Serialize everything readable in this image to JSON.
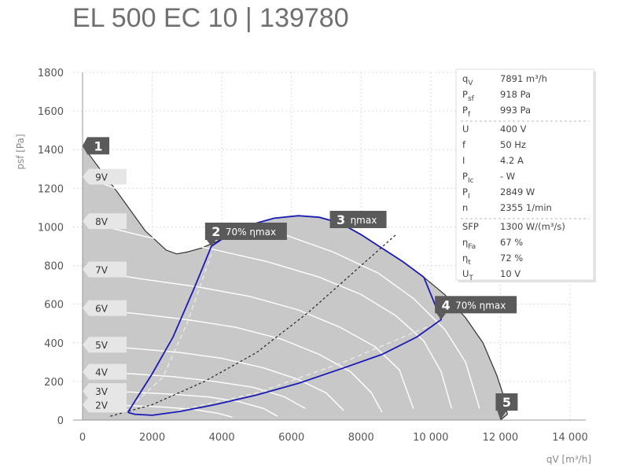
{
  "title": "EL 500 EC 10 | 139780",
  "chart_data": {
    "type": "line",
    "xlabel": "qV [m³/h]",
    "ylabel": "psf [Pa]",
    "xlim": [
      0,
      14000
    ],
    "ylim": [
      0,
      1800
    ],
    "x_ticks": [
      {
        "value": 0,
        "label": "0"
      },
      {
        "value": 2000,
        "label": "2000"
      },
      {
        "value": 4000,
        "label": "4000"
      },
      {
        "value": 6000,
        "label": "6000"
      },
      {
        "value": 8000,
        "label": "8000"
      },
      {
        "value": 10000,
        "label": "10 000"
      },
      {
        "value": 12000,
        "label": "12 000"
      },
      {
        "value": 14000,
        "label": "14 000"
      }
    ],
    "y_ticks": [
      {
        "value": 0,
        "label": "0"
      },
      {
        "value": 200,
        "label": "200"
      },
      {
        "value": 400,
        "label": "400"
      },
      {
        "value": 600,
        "label": "600"
      },
      {
        "value": 800,
        "label": "800"
      },
      {
        "value": 1000,
        "label": "1000"
      },
      {
        "value": 1200,
        "label": "1200"
      },
      {
        "value": 1400,
        "label": "1400"
      },
      {
        "value": 1600,
        "label": "1600"
      },
      {
        "value": 1800,
        "label": "1800"
      }
    ],
    "grid": true,
    "envelope": [
      [
        0,
        1420
      ],
      [
        500,
        1300
      ],
      [
        1000,
        1180
      ],
      [
        1400,
        1080
      ],
      [
        1800,
        980
      ],
      [
        2100,
        930
      ],
      [
        2400,
        880
      ],
      [
        2700,
        860
      ],
      [
        3000,
        870
      ],
      [
        3400,
        890
      ],
      [
        3800,
        920
      ],
      [
        4200,
        960
      ],
      [
        4800,
        1010
      ],
      [
        5500,
        1045
      ],
      [
        6200,
        1058
      ],
      [
        6800,
        1050
      ],
      [
        7400,
        1020
      ],
      [
        8000,
        960
      ],
      [
        8600,
        890
      ],
      [
        9200,
        820
      ],
      [
        9800,
        740
      ],
      [
        10400,
        650
      ],
      [
        11000,
        530
      ],
      [
        11500,
        400
      ],
      [
        11900,
        230
      ],
      [
        12100,
        120
      ],
      [
        12200,
        30
      ],
      [
        12000,
        0
      ],
      [
        0,
        0
      ]
    ],
    "speed_curves": [
      {
        "label": "9V",
        "values": [
          [
            0,
            1260
          ],
          [
            2200,
            1120
          ],
          [
            4200,
            1040
          ],
          [
            5800,
            960
          ],
          [
            7200,
            870
          ],
          [
            8500,
            760
          ],
          [
            9500,
            630
          ],
          [
            10400,
            470
          ],
          [
            11000,
            300
          ],
          [
            11400,
            60
          ]
        ]
      },
      {
        "label": "8V",
        "values": [
          [
            0,
            1030
          ],
          [
            1800,
            950
          ],
          [
            3600,
            890
          ],
          [
            5300,
            820
          ],
          [
            6800,
            740
          ],
          [
            8000,
            650
          ],
          [
            9000,
            540
          ],
          [
            9800,
            410
          ],
          [
            10300,
            250
          ],
          [
            10600,
            60
          ]
        ]
      },
      {
        "label": "7V",
        "values": [
          [
            0,
            780
          ],
          [
            1700,
            730
          ],
          [
            3300,
            690
          ],
          [
            4800,
            640
          ],
          [
            6200,
            570
          ],
          [
            7400,
            480
          ],
          [
            8400,
            380
          ],
          [
            9100,
            260
          ],
          [
            9500,
            60
          ]
        ]
      },
      {
        "label": "6V",
        "values": [
          [
            0,
            580
          ],
          [
            1600,
            550
          ],
          [
            3000,
            520
          ],
          [
            4400,
            480
          ],
          [
            5700,
            420
          ],
          [
            6800,
            340
          ],
          [
            7700,
            250
          ],
          [
            8300,
            140
          ],
          [
            8600,
            40
          ]
        ]
      },
      {
        "label": "5V",
        "values": [
          [
            0,
            390
          ],
          [
            1500,
            370
          ],
          [
            2800,
            350
          ],
          [
            4000,
            320
          ],
          [
            5200,
            270
          ],
          [
            6200,
            210
          ],
          [
            7000,
            140
          ],
          [
            7500,
            50
          ]
        ]
      },
      {
        "label": "4V",
        "values": [
          [
            0,
            250
          ],
          [
            1400,
            240
          ],
          [
            2600,
            225
          ],
          [
            3800,
            200
          ],
          [
            4900,
            170
          ],
          [
            5800,
            120
          ],
          [
            6400,
            60
          ]
        ]
      },
      {
        "label": "3V",
        "values": [
          [
            0,
            150
          ],
          [
            1400,
            145
          ],
          [
            2500,
            135
          ],
          [
            3600,
            120
          ],
          [
            4500,
            95
          ],
          [
            5200,
            60
          ],
          [
            5600,
            20
          ]
        ]
      },
      {
        "label": "2V",
        "values": [
          [
            0,
            80
          ],
          [
            1300,
            75
          ],
          [
            2300,
            68
          ],
          [
            3200,
            55
          ],
          [
            3900,
            35
          ],
          [
            4300,
            15
          ]
        ]
      }
    ],
    "efficiency_curves": [
      {
        "label": "ηmax",
        "values": [
          [
            800,
            20
          ],
          [
            2000,
            80
          ],
          [
            3500,
            200
          ],
          [
            5000,
            350
          ],
          [
            6500,
            560
          ],
          [
            8000,
            800
          ],
          [
            9000,
            960
          ]
        ]
      },
      {
        "label": "70% ηmax",
        "values": [
          [
            1200,
            40
          ],
          [
            2300,
            220
          ],
          [
            3000,
            500
          ],
          [
            3700,
            860
          ]
        ]
      },
      {
        "label": "70% ηmax",
        "values": [
          [
            2500,
            40
          ],
          [
            5000,
            140
          ],
          [
            7500,
            300
          ],
          [
            10000,
            490
          ]
        ]
      }
    ],
    "operating_boundary": {
      "color": "#1a1ab4",
      "values": [
        [
          1300,
          40
        ],
        [
          2000,
          240
        ],
        [
          2600,
          430
        ],
        [
          3200,
          680
        ],
        [
          3700,
          900
        ],
        [
          4200,
          960
        ],
        [
          4800,
          1010
        ],
        [
          5500,
          1045
        ],
        [
          6200,
          1058
        ],
        [
          6800,
          1050
        ],
        [
          7400,
          1020
        ],
        [
          8000,
          960
        ],
        [
          8600,
          890
        ],
        [
          9200,
          820
        ],
        [
          9800,
          740
        ],
        [
          10300,
          520
        ],
        [
          9600,
          430
        ],
        [
          8600,
          340
        ],
        [
          7500,
          270
        ],
        [
          6200,
          190
        ],
        [
          5000,
          130
        ],
        [
          3800,
          80
        ],
        [
          2800,
          45
        ],
        [
          2000,
          25
        ],
        [
          1500,
          30
        ],
        [
          1300,
          40
        ]
      ]
    },
    "markers": [
      {
        "id": "1",
        "label": "",
        "x": 0,
        "y": 1420
      },
      {
        "id": "2",
        "label": "70% ηmax",
        "x": 3700,
        "y": 900
      },
      {
        "id": "3",
        "label": "ηmax",
        "x": 7600,
        "y": 1010
      },
      {
        "id": "4",
        "label": "70% ηmax",
        "x": 10300,
        "y": 520
      },
      {
        "id": "5",
        "label": "",
        "x": 12000,
        "y": 0
      }
    ],
    "info_table": {
      "groups": [
        [
          {
            "sym": "q",
            "sub": "V",
            "value": "7891 m³/h"
          },
          {
            "sym": "P",
            "sub": "sf",
            "value": "918 Pa"
          },
          {
            "sym": "P",
            "sub": "f",
            "value": "993 Pa"
          }
        ],
        [
          {
            "sym": "U",
            "sub": "",
            "value": "400 V"
          },
          {
            "sym": "f",
            "sub": "",
            "value": "50 Hz"
          },
          {
            "sym": "I",
            "sub": "",
            "value": "4.2 A"
          },
          {
            "sym": "P",
            "sub": "Ic",
            "value": "- W"
          },
          {
            "sym": "P",
            "sub": "I",
            "value": "2849 W"
          },
          {
            "sym": "n",
            "sub": "",
            "value": "2355 1/min"
          }
        ],
        [
          {
            "sym": "SFP",
            "sub": "",
            "value": "1300 W/(m³/s)"
          },
          {
            "sym": "η",
            "sub": "Fa",
            "value": "67 %"
          },
          {
            "sym": "η",
            "sub": "t",
            "value": "72 %"
          },
          {
            "sym": "U",
            "sub": "T",
            "value": "10 V"
          }
        ]
      ]
    },
    "colors": {
      "envelope_fill": "#c8c8c8",
      "envelope_edge": "#303030",
      "speed_line": "#ffffff",
      "eff_dash": "#222222",
      "eff_dash_light": "#eeeeee",
      "boundary": "#1a1ab4",
      "marker_fill": "#5a5a5a",
      "label_tab": "#e6e6e6"
    }
  }
}
